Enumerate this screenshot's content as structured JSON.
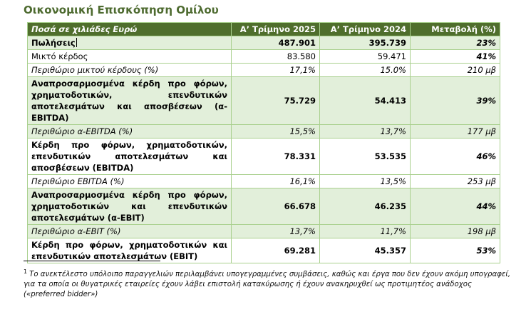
{
  "title": "Οικονομική Επισκόπηση Ομίλου",
  "table": {
    "headers": [
      "Ποσά σε χιλιάδες Ευρώ",
      "Α’ Τρίμηνο 2025",
      "Α’ Τρίμηνο 2024",
      "Μεταβολή (%)"
    ],
    "rows": [
      {
        "label": "Πωλήσεις",
        "q2025": "487.901",
        "q2024": "395.739",
        "change": "23%"
      },
      {
        "label": "Μικτό κέρδος",
        "q2025": "83.580",
        "q2024": "59.471",
        "change": "41%"
      },
      {
        "label": "Περιθώριο μικτού κέρδους (%)",
        "q2025": "17,1%",
        "q2024": "15.0%",
        "change": "210 μβ"
      },
      {
        "label": "Αναπροσαρμοσμένα κέρδη προ φόρων, χρηματοδοτικών, επενδυτικών αποτελεσμάτων και αποσβέσεων (α-EBITDA)",
        "q2025": "75.729",
        "q2024": "54.413",
        "change": "39%"
      },
      {
        "label": "Περιθώριο α-EBITDA (%)",
        "q2025": "15,5%",
        "q2024": "13,7%",
        "change": "177 μβ"
      },
      {
        "label": "Κέρδη προ φόρων, χρηματοδοτικών, επενδυτικών αποτελεσμάτων και αποσβέσεων (EBITDA)",
        "q2025": "78.331",
        "q2024": "53.535",
        "change": "46%"
      },
      {
        "label": "Περιθώριο EBITDA (%)",
        "q2025": "16,1%",
        "q2024": "13,5%",
        "change": "253 μβ"
      },
      {
        "label": "Αναπροσαρμοσμένα κέρδη προ φόρων, χρηματοδοτικών και επενδυτικών αποτελεσμάτων (α-EBIT)",
        "q2025": "66.678",
        "q2024": "46.235",
        "change": "44%"
      },
      {
        "label": "Περιθώριο α-EBIT (%)",
        "q2025": "13,7%",
        "q2024": "11,7%",
        "change": "198 μβ"
      },
      {
        "label": "Κέρδη προ φόρων, χρηματοδοτικών και επενδυτικών αποτελεσμάτων (EBIT)",
        "q2025": "69.281",
        "q2024": "45.357",
        "change": "53%"
      }
    ]
  },
  "footnote": {
    "marker": "1",
    "text": "Το ανεκτέλεστο υπόλοιπο παραγγελιών περιλαμβάνει υπογεγραμμένες συμβάσεις, καθώς και έργα που δεν έχουν ακόμη υπογραφεί, για τα οποία οι θυγατρικές εταιρείες έχουν λάβει επιστολή κατακύρωσης ή έχουν ανακηρυχθεί ως προτιμητέος ανάδοχος («preferred bidder»)"
  },
  "colors": {
    "title": "#4e6b30",
    "header_bg": "#4f6e2c",
    "row_green": "#e2efda",
    "border": "#a9d08e"
  }
}
